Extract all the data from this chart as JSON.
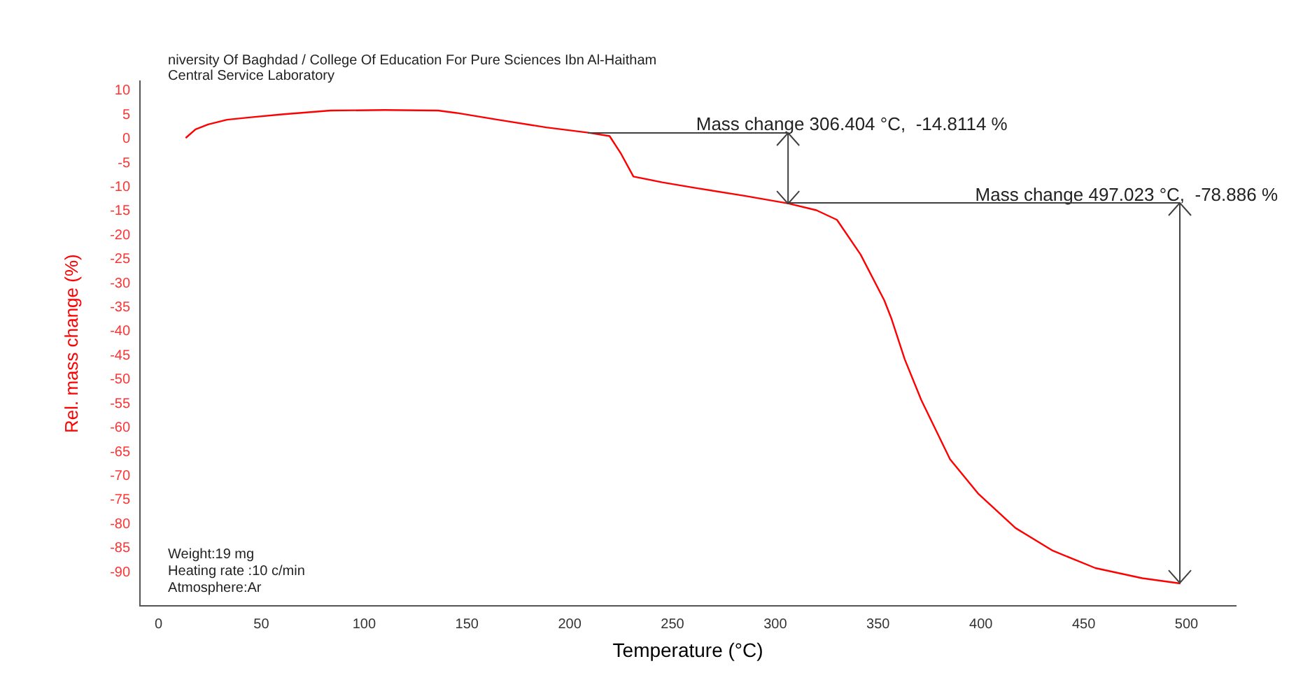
{
  "chart_data": {
    "type": "line",
    "title": "niversity Of Baghdad / College Of Education For Pure Sciences Ibn Al-Haitham",
    "subtitle": "Central Service Laboratory",
    "xlabel": "Temperature (°C)",
    "ylabel": "Rel. mass change (%)",
    "xlim": [
      -9,
      524
    ],
    "xticks": [
      0,
      50,
      100,
      150,
      200,
      250,
      300,
      350,
      400,
      450,
      500
    ],
    "ylim": [
      -97,
      12
    ],
    "yticks": [
      10,
      5,
      0,
      -5,
      -10,
      -15,
      -20,
      -25,
      -30,
      -35,
      -40,
      -45,
      -50,
      -55,
      -60,
      -65,
      -70,
      -75,
      -80,
      -85,
      -90
    ],
    "grid": false,
    "legend": false,
    "marker": "none",
    "line_style": "solid",
    "series": [
      {
        "color": "#ff0000",
        "x": [
          13.2,
          18,
          24.1,
          33.3,
          45,
          60,
          83.6,
          110,
          136,
          145,
          165,
          188.6,
          209,
          219.4,
          225,
          231,
          245,
          261.6,
          285,
          306.404,
          320,
          330,
          341.5,
          353,
          356.4,
          363,
          371,
          385,
          398.6,
          416.9,
          435,
          455.7,
          478.5,
          497.023
        ],
        "values": [
          0.2,
          2,
          3.0,
          4.0,
          4.5,
          5.1,
          5.9,
          6,
          5.9,
          5.4,
          4,
          2.4,
          1.3,
          0.6,
          -3.1,
          -7.8,
          -9,
          -10.2,
          -11.8,
          -13.4,
          -14.8,
          -16.8,
          -24,
          -33.5,
          -37.2,
          -45.8,
          -54.2,
          -66.5,
          -73.6,
          -80.8,
          -85.5,
          -89.1,
          -91.2,
          -92.3
        ]
      }
    ],
    "annotations": [
      {
        "text": "Mass change 306.404 °C,  -14.8114 %",
        "x": 209,
        "y": 1.3
      },
      {
        "text": "Mass change 497.023 °C,  -78.886 %",
        "x": 306.404,
        "y": -13.4
      },
      "Weight:19 mg",
      "Heating rate :10 c/min",
      "Atmosphere:Ar"
    ]
  }
}
